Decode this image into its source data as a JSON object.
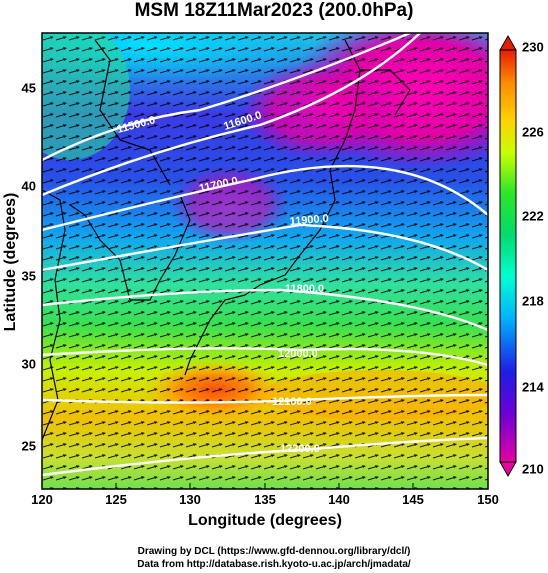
{
  "title": "MSM 18Z11Mar2023 (200.0hPa)",
  "x_axis": {
    "label": "Longitude (degrees)",
    "ticks": [
      "120",
      "125",
      "130",
      "135",
      "140",
      "145",
      "150"
    ],
    "range": [
      120,
      150
    ]
  },
  "y_axis": {
    "label": "Latitude  (degrees)",
    "ticks": [
      "25",
      "30",
      "35",
      "40",
      "45"
    ],
    "range": [
      22.4,
      47.6
    ]
  },
  "colorbar": {
    "ticks": [
      "210",
      "214",
      "218",
      "222",
      "226",
      "230"
    ],
    "range": [
      210,
      230
    ],
    "colors": [
      "#e600a0",
      "#6a00d8",
      "#1e1ee6",
      "#00b4ff",
      "#00ffd0",
      "#00dc6e",
      "#28e628",
      "#c8ff00",
      "#ffd200",
      "#ff8c00",
      "#ff4500",
      "#e61e00"
    ]
  },
  "contours": [
    {
      "label": "11500.0"
    },
    {
      "label": "11600.0"
    },
    {
      "label": "11700.0"
    },
    {
      "label": "11900.0"
    },
    {
      "label": "11800.0"
    },
    {
      "label": "12000.0"
    },
    {
      "label": "12100.0"
    },
    {
      "label": "12200.0"
    }
  ],
  "credits": {
    "line1": "Drawing by DCL (https://www.gfd-dennou.org/library/dcl/)",
    "line2": "Data from http://database.rish.kyoto-u.ac.jp/arch/jmadata/"
  }
}
